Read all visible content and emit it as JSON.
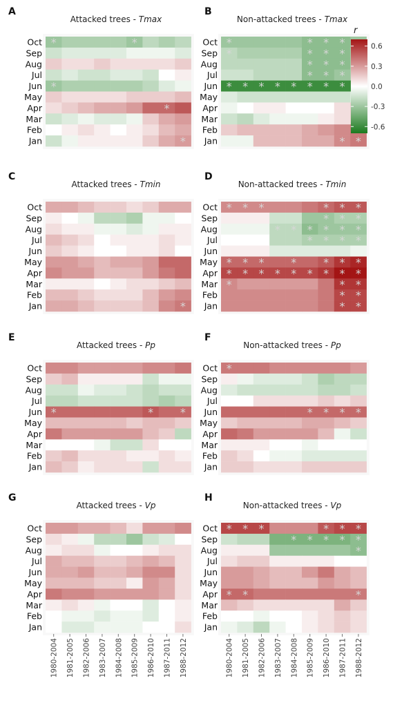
{
  "periods": [
    "1980-2004",
    "1981-2005",
    "1982-2006",
    "1983-2007",
    "1984-2008",
    "1985-2009",
    "1986-2010",
    "1987-2011",
    "1988-2012"
  ],
  "months": [
    "Oct",
    "Sep",
    "Aug",
    "Jul",
    "Jun",
    "May",
    "Apr",
    "Mar",
    "Feb",
    "Jan"
  ],
  "legend": {
    "title": "r",
    "ticks": [
      0.6,
      0.3,
      0.0,
      -0.3,
      -0.6
    ],
    "tick_labels": [
      "0.6",
      "0.3",
      "0.0",
      "-0.3",
      "-0.6"
    ],
    "min": -0.7,
    "max": 0.7,
    "colors": {
      "negative": "#1b7a1e",
      "zero": "#ffffff",
      "positive": "#a31515"
    }
  },
  "chart_data": [
    {
      "type": "heatmap",
      "letter": "A",
      "title_prefix": "Attacked trees - ",
      "title_var": "Tmax",
      "values": [
        [
          -0.3,
          -0.25,
          -0.25,
          -0.25,
          -0.25,
          -0.3,
          -0.2,
          -0.25,
          -0.2
        ],
        [
          -0.15,
          -0.1,
          -0.1,
          -0.1,
          -0.1,
          -0.05,
          -0.05,
          -0.05,
          -0.1
        ],
        [
          0.15,
          0.1,
          0.1,
          0.15,
          0.1,
          0.1,
          0.1,
          0.1,
          0.15
        ],
        [
          -0.15,
          -0.1,
          -0.15,
          -0.15,
          -0.1,
          -0.1,
          -0.15,
          0.0,
          0.05
        ],
        [
          -0.3,
          -0.25,
          -0.25,
          -0.25,
          -0.25,
          -0.25,
          -0.2,
          -0.1,
          -0.05
        ],
        [
          0.15,
          0.1,
          0.1,
          0.1,
          0.1,
          0.15,
          0.15,
          0.15,
          0.2
        ],
        [
          0.1,
          0.15,
          0.2,
          0.25,
          0.25,
          0.3,
          0.45,
          0.45,
          0.5
        ],
        [
          -0.15,
          -0.1,
          -0.05,
          -0.1,
          -0.1,
          -0.05,
          0.15,
          0.25,
          0.3
        ],
        [
          0.0,
          0.05,
          0.1,
          0.05,
          0.0,
          0.05,
          0.1,
          0.2,
          0.25
        ],
        [
          -0.15,
          -0.05,
          0.05,
          0.05,
          0.05,
          0.05,
          0.15,
          0.25,
          0.3
        ]
      ],
      "stars": [
        [
          0,
          0
        ],
        [
          0,
          5
        ],
        [
          4,
          0
        ],
        [
          6,
          7
        ],
        [
          9,
          8
        ]
      ]
    },
    {
      "type": "heatmap",
      "letter": "B",
      "title_prefix": "Non-attacked trees - ",
      "title_var": "Tmax",
      "values": [
        [
          -0.3,
          -0.3,
          -0.3,
          -0.3,
          -0.3,
          -0.35,
          -0.35,
          -0.35,
          -0.3
        ],
        [
          -0.2,
          -0.25,
          -0.25,
          -0.25,
          -0.25,
          -0.35,
          -0.35,
          -0.35,
          -0.25
        ],
        [
          -0.2,
          -0.2,
          -0.2,
          -0.2,
          -0.2,
          -0.35,
          -0.35,
          -0.35,
          -0.25
        ],
        [
          -0.15,
          -0.15,
          -0.2,
          -0.2,
          -0.2,
          -0.35,
          -0.35,
          -0.3,
          -0.25
        ],
        [
          -0.6,
          -0.6,
          -0.6,
          -0.6,
          -0.6,
          -0.6,
          -0.6,
          -0.6,
          -0.55
        ],
        [
          -0.1,
          -0.15,
          -0.15,
          -0.15,
          -0.15,
          -0.15,
          -0.15,
          -0.15,
          -0.1
        ],
        [
          -0.05,
          0.0,
          0.05,
          0.05,
          0.0,
          0.0,
          0.0,
          0.1,
          0.15
        ],
        [
          -0.15,
          -0.2,
          -0.1,
          -0.05,
          -0.05,
          -0.05,
          0.05,
          0.1,
          0.15
        ],
        [
          0.15,
          0.2,
          0.2,
          0.2,
          0.2,
          0.25,
          0.3,
          0.35,
          0.4
        ],
        [
          -0.05,
          -0.05,
          0.2,
          0.2,
          0.2,
          0.25,
          0.25,
          0.35,
          0.4
        ]
      ],
      "stars": [
        [
          0,
          0
        ],
        [
          0,
          5
        ],
        [
          0,
          6
        ],
        [
          0,
          7
        ],
        [
          1,
          0
        ],
        [
          1,
          5
        ],
        [
          1,
          6
        ],
        [
          1,
          7
        ],
        [
          2,
          5
        ],
        [
          2,
          6
        ],
        [
          2,
          7
        ],
        [
          3,
          5
        ],
        [
          3,
          6
        ],
        [
          3,
          7
        ],
        [
          4,
          0
        ],
        [
          4,
          1
        ],
        [
          4,
          2
        ],
        [
          4,
          3
        ],
        [
          4,
          4
        ],
        [
          4,
          5
        ],
        [
          4,
          6
        ],
        [
          4,
          7
        ],
        [
          4,
          8
        ],
        [
          8,
          8
        ],
        [
          9,
          7
        ],
        [
          9,
          8
        ]
      ]
    },
    {
      "type": "heatmap",
      "letter": "C",
      "title_prefix": "Attacked trees - ",
      "title_var": "Tmin",
      "values": [
        [
          0.25,
          0.25,
          0.2,
          0.15,
          0.15,
          0.1,
          0.15,
          0.25,
          0.25
        ],
        [
          0.05,
          0.0,
          -0.05,
          -0.2,
          -0.2,
          -0.25,
          -0.05,
          -0.05,
          0.0
        ],
        [
          0.1,
          0.05,
          0.05,
          -0.05,
          -0.05,
          -0.1,
          -0.05,
          0.05,
          0.05
        ],
        [
          0.2,
          0.15,
          0.1,
          0.0,
          0.05,
          0.05,
          0.05,
          0.1,
          0.05
        ],
        [
          0.15,
          0.1,
          0.05,
          0.0,
          0.0,
          0.05,
          0.05,
          0.1,
          0.0
        ],
        [
          0.3,
          0.3,
          0.25,
          0.2,
          0.25,
          0.25,
          0.3,
          0.45,
          0.45
        ],
        [
          0.35,
          0.3,
          0.3,
          0.2,
          0.2,
          0.2,
          0.3,
          0.4,
          0.45
        ],
        [
          0.05,
          0.05,
          0.05,
          0.0,
          0.05,
          0.1,
          0.1,
          0.15,
          0.2
        ],
        [
          0.2,
          0.2,
          0.15,
          0.1,
          0.1,
          0.1,
          0.2,
          0.3,
          0.35
        ],
        [
          0.25,
          0.25,
          0.2,
          0.15,
          0.15,
          0.15,
          0.2,
          0.35,
          0.4
        ]
      ],
      "stars": [
        [
          9,
          8
        ]
      ]
    },
    {
      "type": "heatmap",
      "letter": "D",
      "title_prefix": "Non-attacked trees - ",
      "title_var": "Tmin",
      "values": [
        [
          0.35,
          0.35,
          0.35,
          0.35,
          0.35,
          0.4,
          0.45,
          0.5,
          0.5
        ],
        [
          0.05,
          0.05,
          0.05,
          -0.15,
          -0.15,
          -0.3,
          -0.3,
          -0.25,
          -0.25
        ],
        [
          -0.05,
          -0.05,
          -0.05,
          -0.2,
          -0.2,
          -0.35,
          -0.3,
          -0.3,
          -0.3
        ],
        [
          0.0,
          0.0,
          0.0,
          -0.2,
          -0.2,
          -0.25,
          -0.25,
          -0.25,
          -0.25
        ],
        [
          0.05,
          0.05,
          0.05,
          -0.1,
          -0.1,
          -0.1,
          -0.1,
          -0.1,
          -0.05
        ],
        [
          0.45,
          0.45,
          0.45,
          0.45,
          0.45,
          0.45,
          0.5,
          0.6,
          0.65
        ],
        [
          0.55,
          0.55,
          0.55,
          0.55,
          0.55,
          0.55,
          0.6,
          0.7,
          0.7
        ],
        [
          0.35,
          0.3,
          0.3,
          0.3,
          0.3,
          0.3,
          0.4,
          0.6,
          0.6
        ],
        [
          0.35,
          0.35,
          0.35,
          0.35,
          0.35,
          0.35,
          0.4,
          0.55,
          0.55
        ],
        [
          0.35,
          0.35,
          0.35,
          0.35,
          0.35,
          0.35,
          0.4,
          0.55,
          0.55
        ]
      ],
      "stars": [
        [
          0,
          0
        ],
        [
          0,
          1
        ],
        [
          0,
          2
        ],
        [
          0,
          6
        ],
        [
          0,
          7
        ],
        [
          0,
          8
        ],
        [
          1,
          6
        ],
        [
          1,
          7
        ],
        [
          1,
          8
        ],
        [
          2,
          3
        ],
        [
          2,
          4
        ],
        [
          2,
          5
        ],
        [
          2,
          6
        ],
        [
          2,
          7
        ],
        [
          2,
          8
        ],
        [
          3,
          5
        ],
        [
          3,
          6
        ],
        [
          3,
          7
        ],
        [
          3,
          8
        ],
        [
          5,
          0
        ],
        [
          5,
          1
        ],
        [
          5,
          2
        ],
        [
          5,
          4
        ],
        [
          5,
          6
        ],
        [
          5,
          7
        ],
        [
          5,
          8
        ],
        [
          6,
          0
        ],
        [
          6,
          1
        ],
        [
          6,
          2
        ],
        [
          6,
          3
        ],
        [
          6,
          4
        ],
        [
          6,
          5
        ],
        [
          6,
          6
        ],
        [
          6,
          7
        ],
        [
          6,
          8
        ],
        [
          7,
          0
        ],
        [
          7,
          7
        ],
        [
          7,
          8
        ],
        [
          8,
          7
        ],
        [
          8,
          8
        ],
        [
          9,
          7
        ],
        [
          9,
          8
        ]
      ]
    },
    {
      "type": "heatmap",
      "letter": "E",
      "title_prefix": "Attacked trees - ",
      "title_var": "Pp",
      "values": [
        [
          0.35,
          0.35,
          0.3,
          0.3,
          0.3,
          0.3,
          0.35,
          0.35,
          0.4
        ],
        [
          0.15,
          0.2,
          0.05,
          0.05,
          0.05,
          0.05,
          -0.15,
          -0.05,
          -0.05
        ],
        [
          -0.15,
          -0.15,
          -0.05,
          -0.1,
          -0.1,
          -0.15,
          -0.2,
          -0.15,
          -0.15
        ],
        [
          -0.2,
          -0.2,
          -0.15,
          -0.15,
          -0.15,
          -0.15,
          -0.2,
          -0.25,
          -0.2
        ],
        [
          0.45,
          0.45,
          0.45,
          0.45,
          0.45,
          0.45,
          0.5,
          0.45,
          0.45
        ],
        [
          0.2,
          0.2,
          0.2,
          0.2,
          0.2,
          0.15,
          0.2,
          0.2,
          0.15
        ],
        [
          0.4,
          0.3,
          0.3,
          0.3,
          0.3,
          0.3,
          0.2,
          0.15,
          -0.2
        ],
        [
          0.0,
          0.0,
          0.0,
          -0.05,
          -0.15,
          -0.15,
          0.1,
          0.0,
          0.0
        ],
        [
          0.15,
          0.2,
          0.1,
          0.1,
          0.1,
          0.05,
          0.05,
          0.1,
          0.05
        ],
        [
          0.2,
          0.15,
          0.05,
          0.1,
          0.1,
          0.1,
          -0.15,
          0.1,
          0.1
        ]
      ],
      "stars": [
        [
          4,
          0
        ],
        [
          4,
          6
        ],
        [
          4,
          8
        ]
      ]
    },
    {
      "type": "heatmap",
      "letter": "F",
      "title_prefix": "Non-attacked trees - ",
      "title_var": "Pp",
      "values": [
        [
          0.4,
          0.4,
          0.4,
          0.35,
          0.35,
          0.35,
          0.35,
          0.35,
          0.3
        ],
        [
          0.05,
          -0.05,
          -0.1,
          -0.1,
          -0.1,
          -0.15,
          -0.25,
          -0.2,
          -0.2
        ],
        [
          -0.1,
          -0.15,
          -0.15,
          -0.15,
          -0.15,
          -0.15,
          -0.2,
          -0.2,
          -0.15
        ],
        [
          0.0,
          0.0,
          0.1,
          0.1,
          0.1,
          0.1,
          0.15,
          0.1,
          0.15
        ],
        [
          0.45,
          0.45,
          0.45,
          0.45,
          0.45,
          0.45,
          0.45,
          0.45,
          0.45
        ],
        [
          0.15,
          0.2,
          0.2,
          0.2,
          0.2,
          0.25,
          0.25,
          0.2,
          0.15
        ],
        [
          0.45,
          0.4,
          0.3,
          0.3,
          0.3,
          0.3,
          0.2,
          -0.05,
          -0.15
        ],
        [
          0.05,
          0.05,
          0.05,
          0.0,
          0.0,
          -0.05,
          0.0,
          0.0,
          0.0
        ],
        [
          0.15,
          0.1,
          0.0,
          -0.05,
          -0.05,
          -0.1,
          -0.1,
          -0.1,
          -0.1
        ],
        [
          0.15,
          0.15,
          0.1,
          0.1,
          0.1,
          0.15,
          0.15,
          0.15,
          0.15
        ]
      ],
      "stars": [
        [
          0,
          0
        ],
        [
          4,
          5
        ],
        [
          4,
          6
        ],
        [
          4,
          7
        ],
        [
          4,
          8
        ]
      ]
    },
    {
      "type": "heatmap",
      "letter": "G",
      "title_prefix": "Attacked trees - ",
      "title_var": "Vp",
      "values": [
        [
          0.3,
          0.3,
          0.25,
          0.25,
          0.2,
          0.1,
          0.3,
          0.3,
          0.35
        ],
        [
          0.1,
          0.05,
          -0.05,
          -0.2,
          -0.2,
          -0.3,
          -0.15,
          -0.1,
          0.0
        ],
        [
          0.05,
          0.1,
          0.1,
          -0.05,
          0.0,
          0.0,
          0.05,
          0.1,
          0.1
        ],
        [
          0.25,
          0.2,
          0.2,
          0.15,
          0.15,
          0.2,
          0.25,
          0.2,
          0.1
        ],
        [
          0.25,
          0.25,
          0.3,
          0.2,
          0.2,
          0.25,
          0.35,
          0.35,
          0.1
        ],
        [
          0.2,
          0.2,
          0.2,
          0.15,
          0.15,
          0.05,
          0.3,
          0.25,
          0.1
        ],
        [
          0.4,
          0.35,
          0.35,
          0.3,
          0.3,
          0.3,
          0.3,
          0.25,
          0.1
        ],
        [
          0.05,
          0.1,
          0.05,
          -0.05,
          0.0,
          0.0,
          -0.1,
          0.0,
          0.05
        ],
        [
          0.0,
          -0.05,
          -0.05,
          -0.1,
          -0.05,
          -0.05,
          -0.1,
          0.0,
          0.05
        ],
        [
          0.0,
          -0.1,
          -0.1,
          -0.05,
          -0.05,
          -0.05,
          0.0,
          0.0,
          0.1
        ]
      ],
      "stars": []
    },
    {
      "type": "heatmap",
      "letter": "H",
      "title_prefix": "Non-attacked trees - ",
      "title_var": "Vp",
      "values": [
        [
          0.55,
          0.55,
          0.55,
          0.35,
          0.35,
          0.35,
          0.5,
          0.55,
          0.55
        ],
        [
          -0.15,
          -0.2,
          -0.2,
          -0.4,
          -0.4,
          -0.4,
          -0.4,
          -0.4,
          -0.35
        ],
        [
          0.05,
          0.05,
          0.05,
          -0.3,
          -0.3,
          -0.3,
          -0.3,
          -0.3,
          -0.35
        ],
        [
          0.1,
          0.15,
          0.15,
          0.05,
          0.05,
          0.05,
          0.05,
          0.0,
          0.0
        ],
        [
          0.3,
          0.3,
          0.25,
          0.2,
          0.2,
          0.3,
          0.4,
          0.25,
          0.2
        ],
        [
          0.3,
          0.3,
          0.25,
          0.2,
          0.2,
          0.2,
          0.3,
          0.25,
          0.2
        ],
        [
          0.45,
          0.45,
          0.4,
          0.4,
          0.4,
          0.4,
          0.4,
          0.4,
          0.4
        ],
        [
          0.2,
          0.15,
          0.1,
          0.1,
          0.1,
          0.1,
          0.1,
          0.25,
          0.15
        ],
        [
          0.0,
          0.0,
          -0.05,
          0.0,
          0.0,
          0.05,
          0.1,
          0.15,
          0.1
        ],
        [
          -0.05,
          -0.1,
          -0.2,
          -0.05,
          0.0,
          0.05,
          0.1,
          0.15,
          0.1
        ]
      ],
      "stars": [
        [
          0,
          0
        ],
        [
          0,
          1
        ],
        [
          0,
          2
        ],
        [
          0,
          6
        ],
        [
          0,
          7
        ],
        [
          0,
          8
        ],
        [
          1,
          4
        ],
        [
          1,
          5
        ],
        [
          1,
          6
        ],
        [
          1,
          7
        ],
        [
          1,
          8
        ],
        [
          2,
          8
        ],
        [
          6,
          0
        ],
        [
          6,
          1
        ],
        [
          6,
          8
        ]
      ]
    }
  ]
}
